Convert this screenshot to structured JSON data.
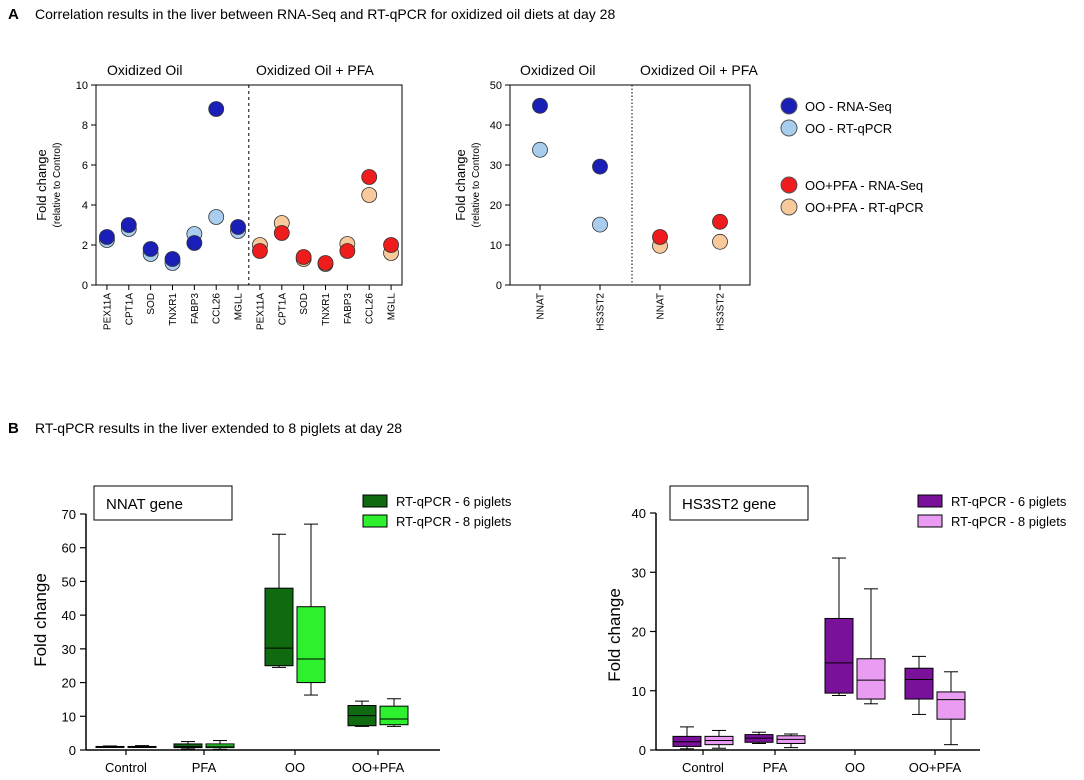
{
  "panel_a": {
    "letter": "A",
    "title": "Correlation results in the liver between RNA-Seq and RT-qPCR for oxidized oil diets at day 28"
  },
  "panel_b": {
    "letter": "B",
    "title": "RT-qPCR results in the liver extended to 8 piglets at day 28"
  },
  "legend_a": [
    {
      "label": "OO - RNA-Seq",
      "color": "#1a1fb8"
    },
    {
      "label": "OO - RT-qPCR",
      "color": "#a9cdee"
    },
    {
      "label": "OO+PFA - RNA-Seq",
      "color": "#ee1c1c"
    },
    {
      "label": "OO+PFA - RT-qPCR",
      "color": "#f8c99a"
    }
  ],
  "chart_data": [
    {
      "type": "scatter",
      "id": "a1",
      "ylabel": "Fold change",
      "ylabel_sub": "(relative to Control)",
      "ylim": [
        0,
        10
      ],
      "yticks": [
        0,
        2,
        4,
        6,
        8,
        10
      ],
      "group_labels": [
        "Oxidized Oil",
        "Oxidized Oil + PFA"
      ],
      "categories": [
        "PEX11A",
        "CPT1A",
        "SOD",
        "TNXR1",
        "FABP3",
        "CCL26",
        "MGLL",
        "PEX11A",
        "CPT1A",
        "SOD",
        "TNXR1",
        "FABP3",
        "CCL26",
        "MGLL"
      ],
      "series": [
        {
          "name": "OO - RT-qPCR",
          "color": "#a9cdee",
          "values": [
            2.25,
            2.8,
            1.55,
            1.1,
            2.55,
            3.4,
            2.7,
            null,
            null,
            null,
            null,
            null,
            null,
            null
          ]
        },
        {
          "name": "OO - RNA-Seq",
          "color": "#1a1fb8",
          "values": [
            2.4,
            3.0,
            1.8,
            1.3,
            2.1,
            8.8,
            2.9,
            null,
            null,
            null,
            null,
            null,
            null,
            null
          ]
        },
        {
          "name": "OO+PFA - RT-qPCR",
          "color": "#f8c99a",
          "values": [
            null,
            null,
            null,
            null,
            null,
            null,
            null,
            2.0,
            3.1,
            1.3,
            1.05,
            2.05,
            4.5,
            1.6
          ]
        },
        {
          "name": "OO+PFA - RNA-Seq",
          "color": "#ee1c1c",
          "values": [
            null,
            null,
            null,
            null,
            null,
            null,
            null,
            1.7,
            2.6,
            1.4,
            1.1,
            1.7,
            5.4,
            2.0
          ]
        }
      ]
    },
    {
      "type": "scatter",
      "id": "a2",
      "ylabel": "Fold change",
      "ylabel_sub": "(relative to Control)",
      "ylim": [
        0,
        50
      ],
      "yticks": [
        0,
        10,
        20,
        30,
        40,
        50
      ],
      "group_labels": [
        "Oxidized Oil",
        "Oxidized Oil + PFA"
      ],
      "categories": [
        "NNAT",
        "HS3ST2",
        "NNAT",
        "HS3ST2"
      ],
      "series": [
        {
          "name": "OO - RT-qPCR",
          "color": "#a9cdee",
          "values": [
            33.8,
            15.1,
            null,
            null
          ]
        },
        {
          "name": "OO - RNA-Seq",
          "color": "#1a1fb8",
          "values": [
            44.8,
            29.6,
            null,
            null
          ]
        },
        {
          "name": "OO+PFA - RT-qPCR",
          "color": "#f8c99a",
          "values": [
            null,
            null,
            9.8,
            10.8
          ]
        },
        {
          "name": "OO+PFA - RNA-Seq",
          "color": "#ee1c1c",
          "values": [
            null,
            null,
            12.0,
            15.8
          ]
        }
      ]
    },
    {
      "type": "box",
      "id": "b1",
      "title_box": "NNAT gene",
      "ylabel": "Fold change",
      "ylim": [
        0,
        70
      ],
      "yticks": [
        0,
        10,
        20,
        30,
        40,
        50,
        60,
        70
      ],
      "categories": [
        "Control",
        "PFA",
        "OO",
        "OO+PFA"
      ],
      "series": [
        {
          "name": "RT-qPCR - 6 piglets",
          "color": "#0f6a10",
          "boxes": [
            [
              0.8,
              1.0,
              1.0,
              1.05,
              1.2
            ],
            [
              0.3,
              0.7,
              1.0,
              1.8,
              2.5
            ],
            [
              24.5,
              25.0,
              30.2,
              48.0,
              64.0
            ],
            [
              7.0,
              7.2,
              10.2,
              13.2,
              14.5
            ]
          ]
        },
        {
          "name": "RT-qPCR - 8 piglets",
          "color": "#2ef02e",
          "boxes": [
            [
              0.8,
              0.9,
              1.0,
              1.05,
              1.3
            ],
            [
              0.2,
              0.7,
              1.1,
              1.8,
              2.8
            ],
            [
              16.3,
              20.0,
              27.0,
              42.5,
              67.0
            ],
            [
              7.0,
              7.5,
              9.2,
              13.0,
              15.2
            ]
          ]
        }
      ]
    },
    {
      "type": "box",
      "id": "b2",
      "title_box": "HS3ST2 gene",
      "ylabel": "Fold change",
      "ylim": [
        0,
        40
      ],
      "yticks": [
        0,
        10,
        20,
        30,
        40
      ],
      "categories": [
        "Control",
        "PFA",
        "OO",
        "OO+PFA"
      ],
      "series": [
        {
          "name": "RT-qPCR - 6 piglets",
          "color": "#7a119a",
          "boxes": [
            [
              0.2,
              0.6,
              1.4,
              2.3,
              3.9
            ],
            [
              1.1,
              1.3,
              2.0,
              2.6,
              3.0
            ],
            [
              9.2,
              9.6,
              14.7,
              22.2,
              32.4
            ],
            [
              6.0,
              8.6,
              11.9,
              13.8,
              15.8
            ]
          ]
        },
        {
          "name": "RT-qPCR - 8 piglets",
          "color": "#ea9cf3",
          "boxes": [
            [
              0.3,
              0.9,
              1.6,
              2.3,
              3.3
            ],
            [
              0.4,
              1.1,
              1.8,
              2.4,
              2.7
            ],
            [
              7.8,
              8.6,
              11.8,
              15.4,
              27.2
            ],
            [
              0.9,
              5.2,
              8.5,
              9.8,
              13.2
            ]
          ]
        }
      ]
    }
  ]
}
